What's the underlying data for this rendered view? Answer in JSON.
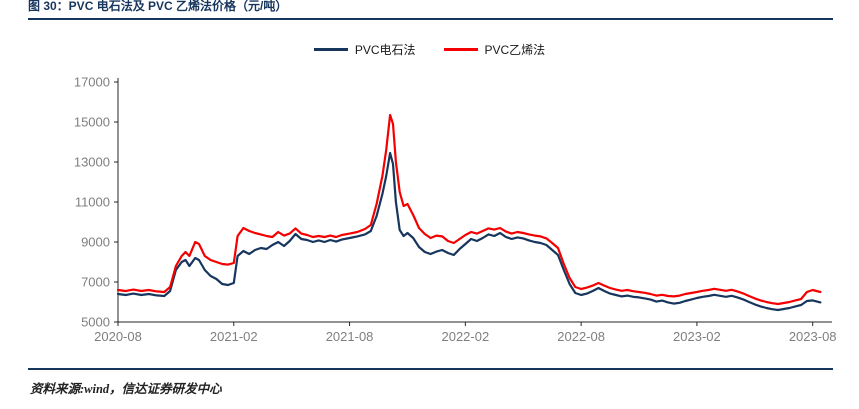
{
  "header": {
    "title": "图 30：PVC 电石法及 PVC 乙烯法价格（元/吨）"
  },
  "footer": {
    "source": "资料来源:wind，信达证券研发中心"
  },
  "colors": {
    "navy": "#17365d",
    "red": "#f40000",
    "axis": "#262626",
    "tick_label": "#7f7f7f",
    "title": "#17365d"
  },
  "chart_data": {
    "type": "line",
    "title": "图 30：PVC 电石法及 PVC 乙烯法价格（元/吨）",
    "xlabel": "",
    "ylabel": "",
    "grid": false,
    "legend_position": "top-center",
    "ylim": [
      5000,
      17000
    ],
    "y_ticks": [
      5000,
      7000,
      9000,
      11000,
      13000,
      15000,
      17000
    ],
    "xlim": [
      0,
      37
    ],
    "x_ticks": [
      {
        "pos": 0,
        "label": "2020-08"
      },
      {
        "pos": 6,
        "label": "2021-02"
      },
      {
        "pos": 12,
        "label": "2021-08"
      },
      {
        "pos": 18,
        "label": "2022-02"
      },
      {
        "pos": 24,
        "label": "2022-08"
      },
      {
        "pos": 30,
        "label": "2023-02"
      },
      {
        "pos": 36,
        "label": "2023-08"
      }
    ],
    "x_unit": "months since 2020-08",
    "series": [
      {
        "name": "PVC电石法",
        "key": "pvc-dianshifa",
        "color_key": "navy",
        "points": [
          [
            0,
            6400
          ],
          [
            0.4,
            6350
          ],
          [
            0.8,
            6420
          ],
          [
            1.2,
            6350
          ],
          [
            1.6,
            6400
          ],
          [
            2,
            6330
          ],
          [
            2.4,
            6300
          ],
          [
            2.7,
            6550
          ],
          [
            3,
            7600
          ],
          [
            3.3,
            8000
          ],
          [
            3.5,
            8100
          ],
          [
            3.7,
            7800
          ],
          [
            4,
            8200
          ],
          [
            4.2,
            8100
          ],
          [
            4.5,
            7600
          ],
          [
            4.8,
            7300
          ],
          [
            5.1,
            7150
          ],
          [
            5.4,
            6900
          ],
          [
            5.7,
            6850
          ],
          [
            6,
            6950
          ],
          [
            6.2,
            8300
          ],
          [
            6.5,
            8550
          ],
          [
            6.8,
            8400
          ],
          [
            7.1,
            8600
          ],
          [
            7.4,
            8700
          ],
          [
            7.7,
            8650
          ],
          [
            8,
            8850
          ],
          [
            8.3,
            9000
          ],
          [
            8.6,
            8800
          ],
          [
            8.9,
            9050
          ],
          [
            9.2,
            9400
          ],
          [
            9.5,
            9150
          ],
          [
            9.8,
            9100
          ],
          [
            10.1,
            9000
          ],
          [
            10.4,
            9080
          ],
          [
            10.7,
            9000
          ],
          [
            11,
            9100
          ],
          [
            11.3,
            9020
          ],
          [
            11.6,
            9120
          ],
          [
            12,
            9200
          ],
          [
            12.4,
            9280
          ],
          [
            12.8,
            9380
          ],
          [
            13.1,
            9550
          ],
          [
            13.4,
            10300
          ],
          [
            13.7,
            11400
          ],
          [
            13.9,
            12300
          ],
          [
            14.1,
            13450
          ],
          [
            14.25,
            12900
          ],
          [
            14.4,
            11000
          ],
          [
            14.6,
            9600
          ],
          [
            14.8,
            9300
          ],
          [
            15,
            9450
          ],
          [
            15.3,
            9200
          ],
          [
            15.6,
            8750
          ],
          [
            15.9,
            8500
          ],
          [
            16.2,
            8400
          ],
          [
            16.5,
            8520
          ],
          [
            16.8,
            8600
          ],
          [
            17.1,
            8450
          ],
          [
            17.4,
            8350
          ],
          [
            17.7,
            8650
          ],
          [
            18,
            8900
          ],
          [
            18.3,
            9150
          ],
          [
            18.6,
            9050
          ],
          [
            18.9,
            9200
          ],
          [
            19.2,
            9380
          ],
          [
            19.5,
            9300
          ],
          [
            19.8,
            9450
          ],
          [
            20.1,
            9250
          ],
          [
            20.4,
            9150
          ],
          [
            20.7,
            9230
          ],
          [
            21,
            9180
          ],
          [
            21.3,
            9080
          ],
          [
            21.6,
            9000
          ],
          [
            21.9,
            8950
          ],
          [
            22.2,
            8850
          ],
          [
            22.5,
            8600
          ],
          [
            22.8,
            8350
          ],
          [
            23.1,
            7600
          ],
          [
            23.4,
            6900
          ],
          [
            23.7,
            6450
          ],
          [
            24,
            6350
          ],
          [
            24.3,
            6420
          ],
          [
            24.6,
            6550
          ],
          [
            24.9,
            6700
          ],
          [
            25.2,
            6550
          ],
          [
            25.5,
            6420
          ],
          [
            25.8,
            6350
          ],
          [
            26.1,
            6280
          ],
          [
            26.4,
            6320
          ],
          [
            26.7,
            6260
          ],
          [
            27,
            6230
          ],
          [
            27.3,
            6180
          ],
          [
            27.6,
            6120
          ],
          [
            27.9,
            6020
          ],
          [
            28.2,
            6070
          ],
          [
            28.5,
            5980
          ],
          [
            28.8,
            5920
          ],
          [
            29.1,
            5960
          ],
          [
            29.4,
            6050
          ],
          [
            29.7,
            6120
          ],
          [
            30,
            6200
          ],
          [
            30.3,
            6260
          ],
          [
            30.6,
            6300
          ],
          [
            30.9,
            6360
          ],
          [
            31.2,
            6310
          ],
          [
            31.5,
            6260
          ],
          [
            31.8,
            6310
          ],
          [
            32.1,
            6230
          ],
          [
            32.4,
            6130
          ],
          [
            32.7,
            6000
          ],
          [
            33,
            5880
          ],
          [
            33.3,
            5780
          ],
          [
            33.6,
            5700
          ],
          [
            33.9,
            5640
          ],
          [
            34.2,
            5600
          ],
          [
            34.5,
            5650
          ],
          [
            34.8,
            5700
          ],
          [
            35.1,
            5780
          ],
          [
            35.4,
            5850
          ],
          [
            35.7,
            6050
          ],
          [
            36,
            6080
          ],
          [
            36.4,
            5980
          ]
        ]
      },
      {
        "name": "PVC乙烯法",
        "key": "pvc-yixifa",
        "color_key": "red",
        "points": [
          [
            0,
            6600
          ],
          [
            0.4,
            6550
          ],
          [
            0.8,
            6620
          ],
          [
            1.2,
            6550
          ],
          [
            1.6,
            6600
          ],
          [
            2,
            6530
          ],
          [
            2.4,
            6500
          ],
          [
            2.7,
            6750
          ],
          [
            3,
            7800
          ],
          [
            3.3,
            8300
          ],
          [
            3.5,
            8500
          ],
          [
            3.7,
            8300
          ],
          [
            4,
            9000
          ],
          [
            4.2,
            8900
          ],
          [
            4.5,
            8300
          ],
          [
            4.8,
            8100
          ],
          [
            5.1,
            8000
          ],
          [
            5.4,
            7900
          ],
          [
            5.7,
            7870
          ],
          [
            6,
            7950
          ],
          [
            6.2,
            9300
          ],
          [
            6.5,
            9700
          ],
          [
            6.8,
            9550
          ],
          [
            7.1,
            9450
          ],
          [
            7.4,
            9380
          ],
          [
            7.7,
            9300
          ],
          [
            8,
            9250
          ],
          [
            8.3,
            9500
          ],
          [
            8.6,
            9320
          ],
          [
            8.9,
            9420
          ],
          [
            9.2,
            9680
          ],
          [
            9.5,
            9420
          ],
          [
            9.8,
            9350
          ],
          [
            10.1,
            9250
          ],
          [
            10.4,
            9300
          ],
          [
            10.7,
            9250
          ],
          [
            11,
            9320
          ],
          [
            11.3,
            9250
          ],
          [
            11.6,
            9350
          ],
          [
            12,
            9420
          ],
          [
            12.4,
            9500
          ],
          [
            12.8,
            9650
          ],
          [
            13.1,
            9850
          ],
          [
            13.4,
            10900
          ],
          [
            13.7,
            12300
          ],
          [
            13.9,
            13600
          ],
          [
            14.1,
            15350
          ],
          [
            14.25,
            14900
          ],
          [
            14.4,
            13000
          ],
          [
            14.6,
            11500
          ],
          [
            14.8,
            10800
          ],
          [
            15,
            10900
          ],
          [
            15.3,
            10350
          ],
          [
            15.6,
            9700
          ],
          [
            15.9,
            9400
          ],
          [
            16.2,
            9200
          ],
          [
            16.5,
            9320
          ],
          [
            16.8,
            9280
          ],
          [
            17.1,
            9050
          ],
          [
            17.4,
            8950
          ],
          [
            17.7,
            9150
          ],
          [
            18,
            9350
          ],
          [
            18.3,
            9500
          ],
          [
            18.6,
            9420
          ],
          [
            18.9,
            9550
          ],
          [
            19.2,
            9680
          ],
          [
            19.5,
            9620
          ],
          [
            19.8,
            9700
          ],
          [
            20.1,
            9520
          ],
          [
            20.4,
            9420
          ],
          [
            20.7,
            9500
          ],
          [
            21,
            9450
          ],
          [
            21.3,
            9380
          ],
          [
            21.6,
            9320
          ],
          [
            21.9,
            9280
          ],
          [
            22.2,
            9180
          ],
          [
            22.5,
            8950
          ],
          [
            22.8,
            8700
          ],
          [
            23.1,
            7900
          ],
          [
            23.4,
            7200
          ],
          [
            23.7,
            6750
          ],
          [
            24,
            6650
          ],
          [
            24.3,
            6720
          ],
          [
            24.6,
            6820
          ],
          [
            24.9,
            6950
          ],
          [
            25.2,
            6820
          ],
          [
            25.5,
            6700
          ],
          [
            25.8,
            6620
          ],
          [
            26.1,
            6560
          ],
          [
            26.4,
            6600
          ],
          [
            26.7,
            6540
          ],
          [
            27,
            6500
          ],
          [
            27.3,
            6460
          ],
          [
            27.6,
            6400
          ],
          [
            27.9,
            6320
          ],
          [
            28.2,
            6360
          ],
          [
            28.5,
            6300
          ],
          [
            28.8,
            6280
          ],
          [
            29.1,
            6320
          ],
          [
            29.4,
            6400
          ],
          [
            29.7,
            6450
          ],
          [
            30,
            6500
          ],
          [
            30.3,
            6560
          ],
          [
            30.6,
            6600
          ],
          [
            30.9,
            6660
          ],
          [
            31.2,
            6610
          ],
          [
            31.5,
            6560
          ],
          [
            31.8,
            6610
          ],
          [
            32.1,
            6530
          ],
          [
            32.4,
            6430
          ],
          [
            32.7,
            6300
          ],
          [
            33,
            6180
          ],
          [
            33.3,
            6080
          ],
          [
            33.6,
            6000
          ],
          [
            33.9,
            5940
          ],
          [
            34.2,
            5900
          ],
          [
            34.5,
            5950
          ],
          [
            34.8,
            6000
          ],
          [
            35.1,
            6080
          ],
          [
            35.4,
            6150
          ],
          [
            35.7,
            6500
          ],
          [
            36,
            6600
          ],
          [
            36.4,
            6500
          ]
        ]
      }
    ]
  }
}
